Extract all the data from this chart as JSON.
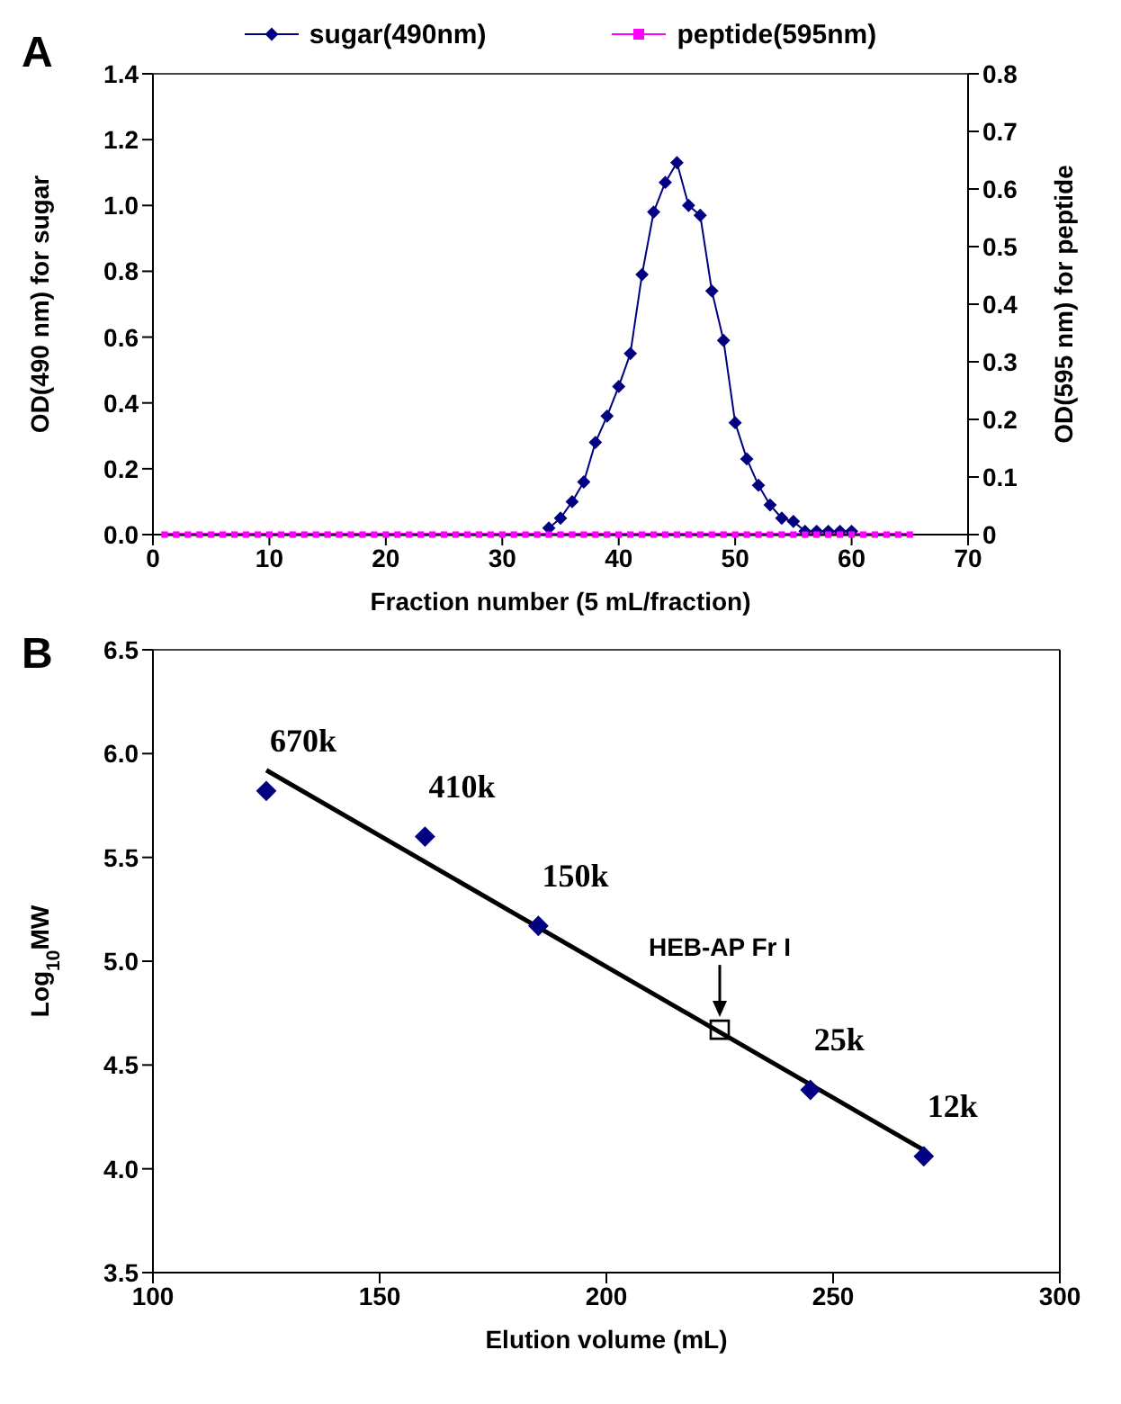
{
  "chart_data": [
    {
      "type": "line",
      "title": "A",
      "xlabel": "Fraction number (5 mL/fraction)",
      "ylabel": "OD(490 nm) for sugar",
      "y2label": "OD(595 nm) for peptide",
      "legend": "top",
      "xlim": [
        0,
        70
      ],
      "xticks": [
        0,
        10,
        20,
        30,
        40,
        50,
        60,
        70
      ],
      "ylim": [
        0,
        1.4
      ],
      "yticks": [
        {
          "value": 0,
          "label": "0.0"
        },
        {
          "value": 0.2,
          "label": "0.2"
        },
        {
          "value": 0.4,
          "label": "0.4"
        },
        {
          "value": 0.6,
          "label": "0.6"
        },
        {
          "value": 0.8,
          "label": "0.8"
        },
        {
          "value": 1,
          "label": "1.0"
        },
        {
          "value": 1.2,
          "label": "1.2"
        },
        {
          "value": 1.4,
          "label": "1.4"
        }
      ],
      "y2lim": [
        0,
        0.8
      ],
      "y2ticks": [
        0,
        0.1,
        0.2,
        0.3,
        0.4,
        0.5,
        0.6,
        0.7,
        0.8
      ],
      "series": [
        {
          "name": "sugar(490nm)",
          "color": "#000080",
          "marker": "diamond",
          "x": [
            34,
            35,
            36,
            37,
            38,
            39,
            40,
            41,
            42,
            43,
            44,
            45,
            46,
            47,
            48,
            49,
            50,
            51,
            52,
            53,
            54,
            55,
            56,
            57,
            58,
            59,
            60
          ],
          "values": [
            0.02,
            0.05,
            0.1,
            0.16,
            0.28,
            0.36,
            0.45,
            0.55,
            0.79,
            0.98,
            1.07,
            1.13,
            1.0,
            0.97,
            0.74,
            0.59,
            0.34,
            0.23,
            0.15,
            0.09,
            0.05,
            0.04,
            0.01,
            0.01,
            0.01,
            0.01,
            0.01
          ]
        },
        {
          "name": "peptide(595nm)",
          "color": "#ff00ff",
          "marker": "square",
          "axis": "y2",
          "x": [
            1,
            2,
            3,
            4,
            5,
            6,
            7,
            8,
            9,
            10,
            11,
            12,
            13,
            14,
            15,
            16,
            17,
            18,
            19,
            20,
            21,
            22,
            23,
            24,
            25,
            26,
            27,
            28,
            29,
            30,
            31,
            32,
            33,
            34,
            35,
            36,
            37,
            38,
            39,
            40,
            41,
            42,
            43,
            44,
            45,
            46,
            47,
            48,
            49,
            50,
            51,
            52,
            53,
            54,
            55,
            56,
            57,
            58,
            59,
            60,
            61,
            62,
            63,
            64,
            65
          ],
          "values": [
            0,
            0,
            0,
            0,
            0,
            0,
            0,
            0,
            0,
            0,
            0,
            0,
            0,
            0,
            0,
            0,
            0,
            0,
            0,
            0,
            0,
            0,
            0,
            0,
            0,
            0,
            0,
            0,
            0,
            0,
            0,
            0,
            0,
            0,
            0,
            0,
            0,
            0,
            0,
            0,
            0,
            0,
            0,
            0,
            0,
            0,
            0,
            0,
            0,
            0,
            0,
            0,
            0,
            0,
            0,
            0,
            0,
            0,
            0,
            0,
            0,
            0,
            0,
            0,
            0
          ]
        }
      ]
    },
    {
      "type": "scatter",
      "title": "B",
      "xlabel": "Elution volume (mL)",
      "ylabel": "Log$_{10}$MW",
      "xlim": [
        100,
        300
      ],
      "xticks": [
        100,
        150,
        200,
        250,
        300
      ],
      "ylim": [
        3.5,
        6.5
      ],
      "yticks": [
        {
          "value": 3.5,
          "label": "3.5"
        },
        {
          "value": 4,
          "label": "4.0"
        },
        {
          "value": 4.5,
          "label": "4.5"
        },
        {
          "value": 5,
          "label": "5.0"
        },
        {
          "value": 5.5,
          "label": "5.5"
        },
        {
          "value": 6,
          "label": "6.0"
        },
        {
          "value": 6.5,
          "label": "6.5"
        }
      ],
      "series": [
        {
          "type": "scatter",
          "color": "#000080",
          "marker": "diamond",
          "x": [
            125,
            160,
            185,
            245,
            270
          ],
          "values": [
            5.82,
            5.6,
            5.17,
            4.38,
            4.06
          ]
        },
        {
          "type": "scatter",
          "color": "#000000",
          "marker": "square",
          "x": [
            225
          ],
          "values": [
            4.67
          ]
        },
        {
          "type": "line",
          "color": "#000000",
          "marker": "none",
          "x": [
            125,
            270
          ],
          "values": [
            5.92,
            4.09
          ]
        }
      ],
      "annotations": [
        {
          "text": "670k",
          "x": 125,
          "y": 5.82
        },
        {
          "text": "410k",
          "x": 160,
          "y": 5.6
        },
        {
          "text": "150k",
          "x": 185,
          "y": 5.17
        },
        {
          "text": "25k",
          "x": 245,
          "y": 4.38
        },
        {
          "text": "12k",
          "x": 270,
          "y": 4.06
        },
        {
          "text": "HEB-AP Fr I",
          "x": 225,
          "y": 4.67
        }
      ]
    }
  ]
}
